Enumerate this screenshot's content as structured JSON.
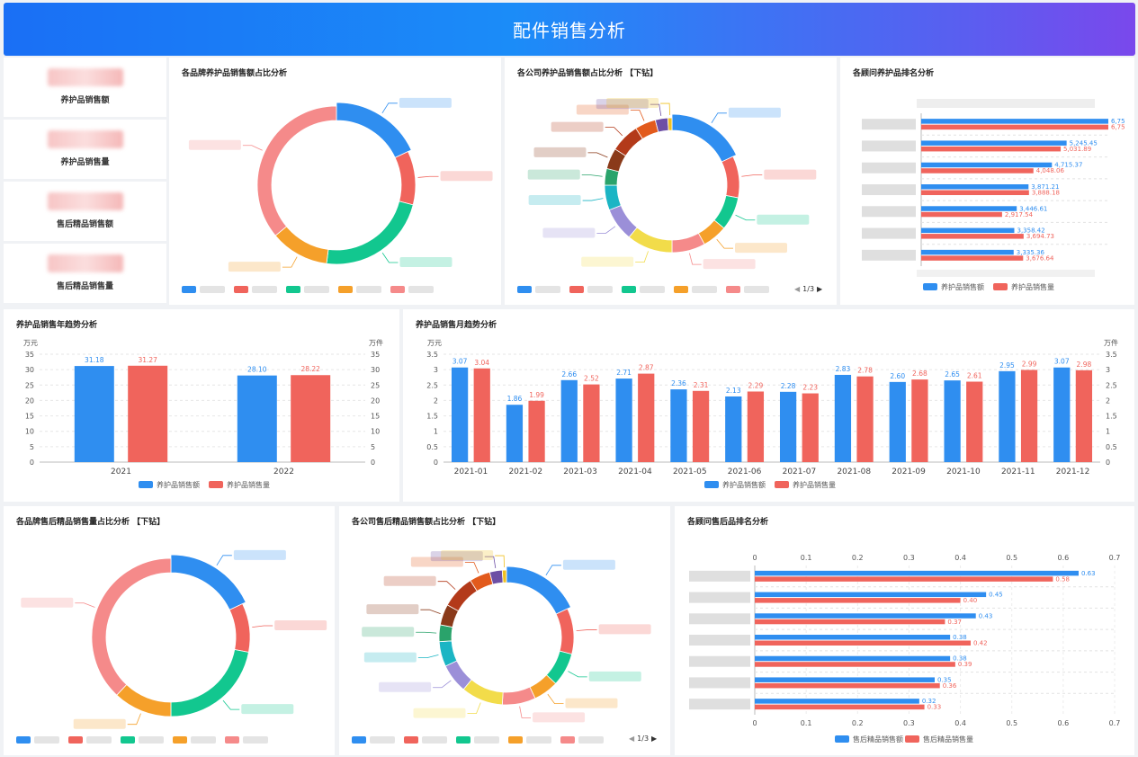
{
  "header": {
    "title": "配件销售分析"
  },
  "kpis": [
    {
      "label": "养护品销售额"
    },
    {
      "label": "养护品销售量"
    },
    {
      "label": "售后精品销售额"
    },
    {
      "label": "售后精品销售量"
    }
  ],
  "panels": {
    "brand_maint": {
      "title": "各品牌养护品销售额占比分析"
    },
    "company_maint": {
      "title": "各公司养护品销售额占比分析 【下钻】"
    },
    "advisor_maint": {
      "title": "各顾问养护品排名分析"
    },
    "yearly": {
      "title": "养护品销售年趋势分析"
    },
    "monthly": {
      "title": "养护品销售月趋势分析"
    },
    "brand_after": {
      "title": "各品牌售后精品销售量占比分析 【下钻】"
    },
    "company_after": {
      "title": "各公司售后精品销售额占比分析 【下钻】"
    },
    "advisor_after": {
      "title": "各顾问售后品排名分析"
    }
  },
  "pager": {
    "text": "1/3"
  },
  "colors": {
    "blue": "#2f8ef0",
    "red": "#f0645c",
    "green": "#12c78f",
    "orange": "#f5a02a",
    "pink": "#f58a8a",
    "yellow": "#f2dc4a",
    "teal": "#1bb5c4",
    "purple": "#9b8fd8",
    "darkred": "#b33a1a",
    "darkgreen": "#2aa36b",
    "violet": "#6d4fa5"
  },
  "chart_data": [
    {
      "id": "brand_maint_donut",
      "type": "pie",
      "title": "各品牌养护品销售额占比分析",
      "values": [
        18,
        11,
        23,
        12,
        36
      ],
      "colors": [
        "#2f8ef0",
        "#f0645c",
        "#12c78f",
        "#f5a02a",
        "#f58a8a"
      ]
    },
    {
      "id": "company_maint_donut",
      "type": "pie",
      "title": "各公司养护品销售额占比分析 【下钻】",
      "values": [
        18,
        10,
        8,
        6,
        8,
        11,
        8,
        6,
        4,
        5,
        7,
        5,
        3,
        1
      ],
      "colors": [
        "#2f8ef0",
        "#f0645c",
        "#12c78f",
        "#f5a02a",
        "#f58a8a",
        "#f2dc4a",
        "#9b8fd8",
        "#1bb5c4",
        "#2aa36b",
        "#8a3a1a",
        "#b33a1a",
        "#e25a1c",
        "#6d4fa5",
        "#f0c020"
      ]
    },
    {
      "id": "advisor_maint_bar",
      "type": "bar",
      "title": "各顾问养护品排名分析",
      "orientation": "horizontal",
      "series": [
        {
          "name": "养护品销售额",
          "values": [
            6.75,
            5245.45,
            4715.37,
            3871.21,
            3446.61,
            3358.42,
            3335.36
          ],
          "labels": [
            "6,75",
            "5,245.45",
            "4,715.37",
            "3,871.21",
            "3,446.61",
            "3,358.42",
            "3,335.36"
          ]
        },
        {
          "name": "养护品销售量",
          "values": [
            6.75,
            5031.89,
            4048.06,
            3888.18,
            2917.54,
            3694.73,
            3676.64
          ],
          "labels": [
            "6,75",
            "5,031.89",
            "4,048.06",
            "3,888.18",
            "2,917.54",
            "3,694.73",
            "3,676.64"
          ]
        }
      ]
    },
    {
      "id": "yearly_bar",
      "type": "bar",
      "title": "养护品销售年趋势分析",
      "categories": [
        "2021",
        "2022"
      ],
      "ylabel_left": "万元",
      "ylabel_right": "万件",
      "ylim": [
        0,
        35
      ],
      "yticks": [
        0,
        5,
        10,
        15,
        20,
        25,
        30,
        35
      ],
      "series": [
        {
          "name": "养护品销售额",
          "values": [
            31.18,
            28.1
          ],
          "labels": [
            "31.18",
            "28.10"
          ]
        },
        {
          "name": "养护品销售量",
          "values": [
            31.27,
            28.22
          ],
          "labels": [
            "31.27",
            "28.22"
          ]
        }
      ]
    },
    {
      "id": "monthly_bar",
      "type": "bar",
      "title": "养护品销售月趋势分析",
      "categories": [
        "2021-01",
        "2021-02",
        "2021-03",
        "2021-04",
        "2021-05",
        "2021-06",
        "2021-07",
        "2021-08",
        "2021-09",
        "2021-10",
        "2021-11",
        "2021-12"
      ],
      "ylabel_left": "万元",
      "ylabel_right": "万件",
      "ylim": [
        0,
        3.5
      ],
      "yticks": [
        0,
        0.5,
        1,
        1.5,
        2,
        2.5,
        3,
        3.5
      ],
      "ytick_labels": [
        "0",
        "0.5",
        "1",
        "1.5",
        "2",
        "2.5",
        "3",
        "3.5"
      ],
      "series": [
        {
          "name": "养护品销售额",
          "values": [
            3.07,
            1.86,
            2.66,
            2.71,
            2.36,
            2.13,
            2.28,
            2.83,
            2.6,
            2.65,
            2.95,
            3.07
          ],
          "labels": [
            "3.07",
            "1.86",
            "2.66",
            "2.71",
            "2.36",
            "2.13",
            "2.28",
            "2.83",
            "2.60",
            "2.65",
            "2.95",
            "3.07"
          ]
        },
        {
          "name": "养护品销售量",
          "values": [
            3.04,
            1.99,
            2.52,
            2.87,
            2.31,
            2.29,
            2.23,
            2.78,
            2.68,
            2.61,
            2.99,
            2.98
          ],
          "labels": [
            "3.04",
            "1.99",
            "2.52",
            "2.87",
            "2.31",
            "2.29",
            "2.23",
            "2.78",
            "2.68",
            "2.61",
            "2.99",
            "2.98"
          ]
        }
      ]
    },
    {
      "id": "brand_after_donut",
      "type": "pie",
      "title": "各品牌售后精品销售量占比分析 【下钻】",
      "values": [
        18,
        10,
        22,
        12,
        38
      ],
      "colors": [
        "#2f8ef0",
        "#f0645c",
        "#12c78f",
        "#f5a02a",
        "#f58a8a"
      ]
    },
    {
      "id": "company_after_donut",
      "type": "pie",
      "title": "各公司售后精品销售额占比分析 【下钻】",
      "values": [
        18,
        11,
        8,
        6,
        8,
        10,
        7,
        6,
        4,
        5,
        8,
        5,
        3,
        1
      ],
      "colors": [
        "#2f8ef0",
        "#f0645c",
        "#12c78f",
        "#f5a02a",
        "#f58a8a",
        "#f2dc4a",
        "#9b8fd8",
        "#1bb5c4",
        "#2aa36b",
        "#8a3a1a",
        "#b33a1a",
        "#e25a1c",
        "#6d4fa5",
        "#f0c020"
      ]
    },
    {
      "id": "advisor_after_bar",
      "type": "bar",
      "title": "各顾问售后品排名分析",
      "orientation": "horizontal",
      "xlim": [
        0,
        0.7
      ],
      "xticks": [
        0,
        0.1,
        0.2,
        0.3,
        0.4,
        0.5,
        0.6,
        0.7
      ],
      "xtick_labels": [
        "0",
        "0.1",
        "0.2",
        "0.3",
        "0.4",
        "0.5",
        "0.6",
        "0.7"
      ],
      "series": [
        {
          "name": "售后精品销售额",
          "values": [
            0.63,
            0.45,
            0.43,
            0.38,
            0.38,
            0.35,
            0.32
          ],
          "labels": [
            "0.63",
            "0.45",
            "0.43",
            "0.38",
            "0.38",
            "0.35",
            "0.32"
          ]
        },
        {
          "name": "售后精品销售量",
          "values": [
            0.58,
            0.4,
            0.37,
            0.42,
            0.39,
            0.36,
            0.33
          ],
          "labels": [
            "0.58",
            "0.40",
            "0.37",
            "0.42",
            "0.39",
            "0.36",
            "0.33"
          ]
        }
      ]
    }
  ]
}
